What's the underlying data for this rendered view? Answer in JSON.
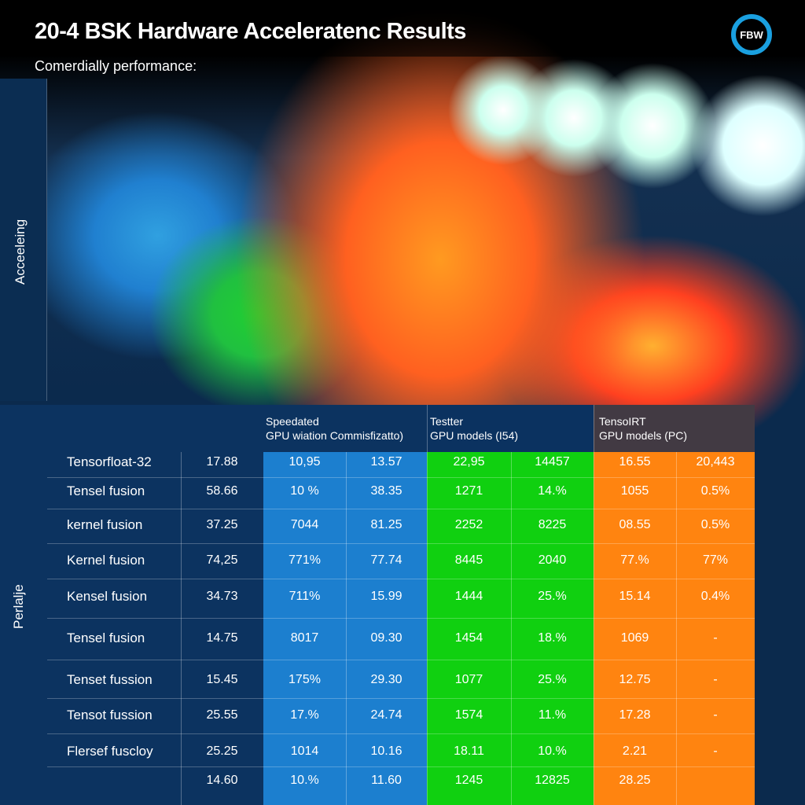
{
  "title": "20-4 BSK Hardware Acceleratenc Results",
  "subtitle": "Comerdially performance:",
  "logo": "FBW",
  "axis_labels": {
    "top": "Acceeleing",
    "bottom": "Perlalje"
  },
  "colors": {
    "blue": "#1c7fcf",
    "green": "#10d010",
    "orange": "#ff8410",
    "panel": "#0c3360"
  },
  "table": {
    "headers": [
      {
        "line1": "Speedated",
        "line2": "GPU wiation Commisfizatto)"
      },
      {
        "line1": "Testter",
        "line2": "GPU models (I54)"
      },
      {
        "line1": "TensoIRT",
        "line2": "GPU models (PC)"
      }
    ],
    "rows": [
      {
        "label": "Tensorfloat-32",
        "values": [
          "17.88",
          "10,95",
          "13.57",
          "22,95",
          "14457",
          "16.55",
          "20,443"
        ]
      },
      {
        "label": "Tensel fusion",
        "values": [
          "58.66",
          "10 %",
          "38.35",
          "1271",
          "14.%",
          "1055",
          "0.5%"
        ]
      },
      {
        "label": "kernel fusion",
        "values": [
          "37.25",
          "7044",
          "81.25",
          "2252",
          "8225",
          "08.55",
          "0.5%"
        ]
      },
      {
        "label": "Kernel fusion",
        "values": [
          "74,25",
          "771%",
          "77.74",
          "8445",
          "2040",
          "77.%",
          "77%"
        ]
      },
      {
        "label": "Kensel fusion",
        "values": [
          "34.73",
          "711%",
          "15.99",
          "1444",
          "25.%",
          "15.14",
          "0.4%"
        ]
      },
      {
        "label": "Tensel fusion",
        "values": [
          "14.75",
          "8017",
          "09.30",
          "1454",
          "18.%",
          "1069",
          "-"
        ]
      },
      {
        "label": "Tenset fussion",
        "values": [
          "15.45",
          "175%",
          "29.30",
          "1077",
          "25.%",
          "12.75",
          "-"
        ]
      },
      {
        "label": "Tensot fussion",
        "values": [
          "25.55",
          "17.%",
          "24.74",
          "1574",
          "11.%",
          "17.28",
          "-"
        ]
      },
      {
        "label": "Flersef fuscloy",
        "values": [
          "25.25",
          "1014",
          "10.16",
          "18.11",
          "10.%",
          "2.21",
          "-"
        ]
      },
      {
        "label": "",
        "values": [
          "14.60",
          "10.%",
          "11.60",
          "1245",
          "12825",
          "28.25",
          ""
        ]
      }
    ]
  }
}
